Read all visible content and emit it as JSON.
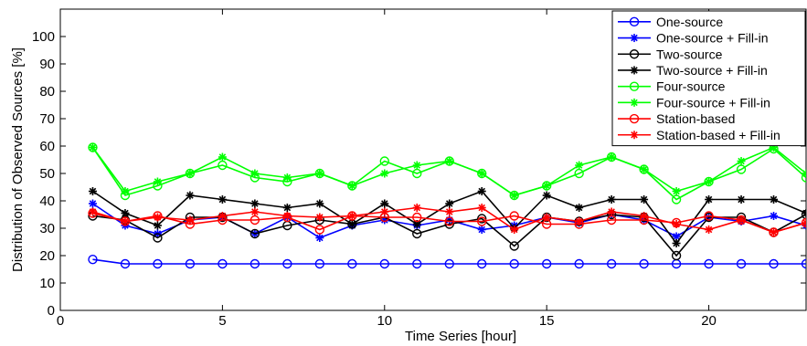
{
  "chart_data": {
    "type": "line",
    "xlabel": "Time Series [hour]",
    "ylabel": "Distribution of Observed Sources [%]",
    "xlim": [
      0,
      23
    ],
    "ylim": [
      0,
      110
    ],
    "x_ticks": [
      0,
      5,
      10,
      15,
      20
    ],
    "y_ticks": [
      0,
      10,
      20,
      30,
      40,
      50,
      60,
      70,
      80,
      90,
      100
    ],
    "grid": false,
    "legend_position": "top-right",
    "x": [
      1,
      2,
      3,
      4,
      5,
      6,
      7,
      8,
      9,
      10,
      11,
      12,
      13,
      14,
      15,
      16,
      17,
      18,
      19,
      20,
      21,
      22,
      23
    ],
    "series": [
      {
        "name": "One-source",
        "color": "#0000ff",
        "marker": "circle",
        "values": [
          18.6,
          17,
          17,
          17,
          17,
          17,
          17,
          17,
          17,
          17,
          17,
          17,
          17,
          17,
          17,
          17,
          17,
          17,
          17,
          17,
          17,
          17,
          17
        ]
      },
      {
        "name": "One-source + Fill-in",
        "color": "#0000ff",
        "marker": "star",
        "values": [
          39,
          31,
          28,
          33,
          34,
          28,
          34,
          26.5,
          31,
          33,
          31,
          33,
          29.5,
          31,
          34,
          32,
          35,
          33,
          27,
          34,
          32.5,
          34.5,
          31
        ]
      },
      {
        "name": "Two-source",
        "color": "#000000",
        "marker": "circle",
        "values": [
          34.5,
          33,
          26.5,
          34,
          34,
          28,
          31,
          33,
          31.5,
          34,
          28,
          31.5,
          33.5,
          23.5,
          34,
          32.5,
          35,
          34,
          20,
          34,
          34,
          28.5,
          35
        ]
      },
      {
        "name": "Two-source + Fill-in",
        "color": "#000000",
        "marker": "star",
        "values": [
          43.5,
          35.5,
          31,
          42,
          40.5,
          39,
          37.5,
          39,
          31.5,
          39,
          31.5,
          39,
          43.5,
          30,
          42,
          37.5,
          40.5,
          40.5,
          24.5,
          40.5,
          40.5,
          40.5,
          35.5
        ]
      },
      {
        "name": "Four-source",
        "color": "#00ff00",
        "marker": "circle",
        "values": [
          59.5,
          42,
          45.5,
          50,
          53,
          48.5,
          47,
          50,
          45.5,
          54.5,
          50,
          54.5,
          50,
          42,
          45.5,
          50,
          56,
          51.5,
          40.5,
          47,
          51.5,
          59,
          48.5
        ]
      },
      {
        "name": "Four-source + Fill-in",
        "color": "#00ff00",
        "marker": "star",
        "values": [
          59.5,
          43.5,
          47,
          50,
          56,
          50,
          48.5,
          50,
          45.5,
          50,
          53,
          54.5,
          50,
          42,
          45.5,
          53,
          56,
          51.5,
          43.5,
          47,
          54.5,
          59.5,
          50
        ]
      },
      {
        "name": "Station-based",
        "color": "#ff0000",
        "marker": "circle",
        "values": [
          35.5,
          32.5,
          34.5,
          31.5,
          33,
          33,
          34,
          29.5,
          34.5,
          34,
          34,
          32.5,
          32.5,
          34.5,
          31.5,
          31.5,
          33,
          33,
          32,
          34.5,
          33,
          28.5,
          32
        ]
      },
      {
        "name": "Station-based + Fill-in",
        "color": "#ff0000",
        "marker": "star",
        "values": [
          36,
          32.5,
          34,
          33,
          34.5,
          36,
          34.5,
          34,
          34.5,
          36,
          37.5,
          36,
          37.5,
          29.5,
          34,
          32.5,
          36,
          34.5,
          31.5,
          29.5,
          33,
          28.5,
          32
        ]
      }
    ]
  }
}
